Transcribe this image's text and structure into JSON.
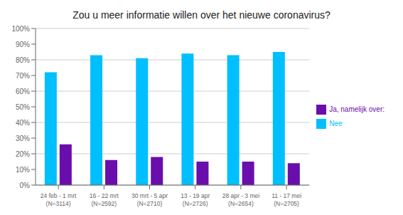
{
  "chart_data": {
    "type": "bar",
    "title": "Zou u meer informatie willen over het nieuwe coronavirus?",
    "categories": [
      "24 feb - 1 mrt\n(N=3114)",
      "16 - 22 mrt\n(N=2592)",
      "30 mrt - 5 apr\n(N=2710)",
      "13 - 19 apr\n(N=2726)",
      "28 apr - 3 mei\n(N=2654)",
      "11 - 17 mei\n(N=2705)"
    ],
    "series": [
      {
        "name": "Nee",
        "color": "#00BFFF",
        "values": [
          72,
          83,
          81,
          84,
          83,
          85
        ]
      },
      {
        "name": "Ja, namelijk over:",
        "color": "#6A0DAD",
        "values": [
          26,
          16,
          18,
          15,
          15,
          14
        ]
      }
    ],
    "ylim": [
      0,
      100
    ],
    "yticks": [
      {
        "value": 0,
        "label": "0%"
      },
      {
        "value": 10,
        "label": "10%"
      },
      {
        "value": 20,
        "label": "20%"
      },
      {
        "value": 30,
        "label": "30%"
      },
      {
        "value": 40,
        "label": "40%"
      },
      {
        "value": 50,
        "label": "50%"
      },
      {
        "value": 60,
        "label": "60%"
      },
      {
        "value": 70,
        "label": "70%"
      },
      {
        "value": 80,
        "label": "80%"
      },
      {
        "value": 90,
        "label": "90%"
      },
      {
        "value": 100,
        "label": "100%"
      }
    ],
    "grid": true,
    "legend": "right"
  }
}
